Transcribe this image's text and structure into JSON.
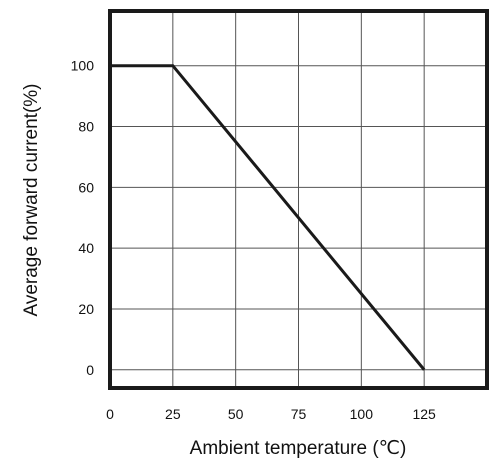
{
  "chart_data": {
    "type": "line",
    "title": "",
    "xlabel": "Ambient temperature (℃)",
    "ylabel": "Average forward current(%)",
    "xlim": [
      0,
      150
    ],
    "ylim": [
      -6,
      118
    ],
    "x_ticks": [
      0,
      25,
      50,
      75,
      100,
      125
    ],
    "x_tick_labels": [
      "0",
      "25",
      "50",
      "75",
      "100",
      "125"
    ],
    "y_ticks": [
      0,
      20,
      40,
      60,
      80,
      100
    ],
    "y_tick_labels": [
      "0",
      "20",
      "40",
      "60",
      "80",
      "100"
    ],
    "grid": true,
    "series": [
      {
        "x": [
          0,
          25,
          125
        ],
        "y": [
          100,
          100,
          0
        ]
      }
    ],
    "colors": {
      "line": "#1a1a1a",
      "grid": "#555555",
      "frame": "#1a1a1a"
    }
  }
}
